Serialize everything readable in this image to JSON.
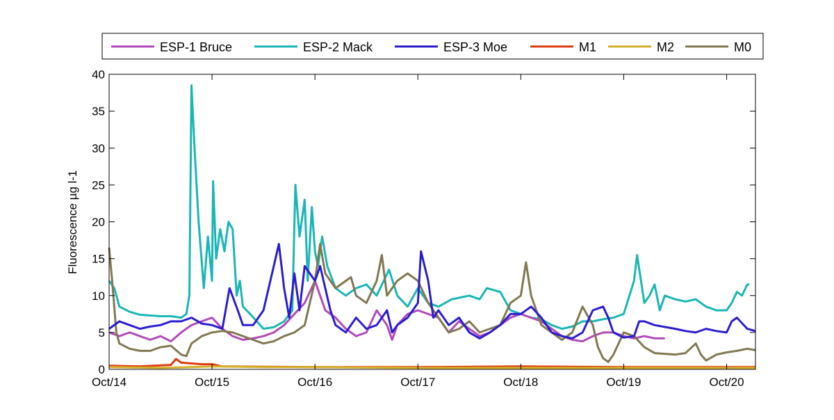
{
  "chart_data": {
    "type": "line",
    "title": "",
    "xlabel": "",
    "ylabel": "Fluorescence µg l-1",
    "xlim": [
      14,
      20.28
    ],
    "ylim": [
      0,
      40
    ],
    "xticks": [
      14,
      15,
      16,
      17,
      18,
      19,
      20
    ],
    "xtick_labels": [
      "Oct/14",
      "Oct/15",
      "Oct/16",
      "Oct/17",
      "Oct/18",
      "Oct/19",
      "Oct/20"
    ],
    "yticks": [
      0,
      5,
      10,
      15,
      20,
      25,
      30,
      35,
      40
    ],
    "ytick_labels": [
      "0",
      "5",
      "10",
      "15",
      "20",
      "25",
      "30",
      "35",
      "40"
    ],
    "grid": false,
    "legend_position": "top-outside",
    "series": [
      {
        "name": "ESP-1 Bruce",
        "color": "#b04ab8",
        "x": [
          14.0,
          14.1,
          14.2,
          14.3,
          14.4,
          14.5,
          14.6,
          14.7,
          14.8,
          14.9,
          15.0,
          15.1,
          15.2,
          15.3,
          15.4,
          15.5,
          15.6,
          15.7,
          15.8,
          15.9,
          16.0,
          16.05,
          16.1,
          16.2,
          16.3,
          16.4,
          16.5,
          16.6,
          16.7,
          16.75,
          16.8,
          16.9,
          17.0,
          17.1,
          17.2,
          17.3,
          17.4,
          17.5,
          17.6,
          17.7,
          17.8,
          17.9,
          18.0,
          18.1,
          18.2,
          18.3,
          18.4,
          18.5,
          18.6,
          18.7,
          18.8,
          18.9,
          19.0,
          19.1,
          19.2,
          19.3,
          19.4
        ],
        "y": [
          5,
          4.5,
          5,
          4.5,
          4,
          4.5,
          3.8,
          5,
          6,
          6.5,
          7,
          5.5,
          4.5,
          4,
          4.2,
          4.5,
          5,
          6,
          7.5,
          9,
          12,
          10,
          8,
          7,
          5.5,
          4.5,
          5,
          8,
          6,
          4,
          6,
          7.5,
          8,
          7.5,
          7,
          5,
          6.5,
          5.5,
          4.5,
          5,
          6,
          7,
          7.5,
          7,
          6.5,
          5.5,
          4.5,
          4,
          3.8,
          4.5,
          5,
          5,
          4.5,
          4.2,
          4.5,
          4.2,
          4.2
        ]
      },
      {
        "name": "ESP-2 Mack",
        "color": "#1ab5b5",
        "x": [
          14.0,
          14.05,
          14.1,
          14.2,
          14.3,
          14.5,
          14.6,
          14.7,
          14.75,
          14.78,
          14.8,
          14.83,
          14.87,
          14.92,
          14.96,
          15.0,
          15.01,
          15.04,
          15.08,
          15.12,
          15.16,
          15.2,
          15.24,
          15.27,
          15.3,
          15.37,
          15.5,
          15.6,
          15.7,
          15.78,
          15.81,
          15.85,
          15.9,
          15.93,
          15.97,
          16.0,
          16.03,
          16.07,
          16.12,
          16.2,
          16.3,
          16.4,
          16.5,
          16.6,
          16.72,
          16.8,
          16.9,
          17.0,
          17.1,
          17.2,
          17.33,
          17.5,
          17.6,
          17.67,
          17.8,
          17.9,
          18.0,
          18.1,
          18.2,
          18.3,
          18.4,
          18.5,
          18.6,
          18.7,
          18.8,
          18.9,
          19.0,
          19.1,
          19.13,
          19.2,
          19.25,
          19.3,
          19.35,
          19.4,
          19.5,
          19.6,
          19.7,
          19.8,
          19.9,
          20.0,
          20.05,
          20.1,
          20.15,
          20.2,
          20.22
        ],
        "y": [
          12,
          11,
          8.5,
          7.8,
          7.4,
          7.2,
          7.2,
          7.0,
          7.5,
          10,
          38.5,
          30,
          20,
          11,
          18,
          12,
          25.5,
          15,
          19,
          16,
          20,
          19,
          10,
          12,
          8.5,
          7.5,
          5.5,
          5.7,
          6.5,
          8,
          25,
          18,
          23,
          12,
          22,
          16,
          14,
          18,
          14,
          11,
          10,
          11,
          11.5,
          10,
          13.5,
          10,
          8.5,
          11,
          9,
          8.5,
          9.5,
          10,
          9.5,
          11,
          10.5,
          8,
          7.5,
          7,
          6.8,
          6,
          5.5,
          5.8,
          6.5,
          6.5,
          6.8,
          7,
          7.5,
          12,
          15.5,
          9,
          10,
          11.5,
          8,
          10,
          9.5,
          9.2,
          9.5,
          8.5,
          8,
          8,
          9,
          10.5,
          10,
          11.5,
          11.5
        ]
      },
      {
        "name": "ESP-3 Moe",
        "color": "#2b1ccf",
        "x": [
          14.0,
          14.1,
          14.2,
          14.3,
          14.4,
          14.5,
          14.6,
          14.7,
          14.8,
          14.9,
          15.0,
          15.1,
          15.17,
          15.25,
          15.3,
          15.4,
          15.5,
          15.6,
          15.65,
          15.7,
          15.75,
          15.8,
          15.85,
          15.9,
          16.0,
          16.05,
          16.1,
          16.15,
          16.2,
          16.3,
          16.4,
          16.5,
          16.6,
          16.7,
          16.75,
          16.8,
          16.9,
          17.0,
          17.03,
          17.1,
          17.15,
          17.2,
          17.3,
          17.4,
          17.5,
          17.6,
          17.7,
          17.8,
          17.9,
          18.0,
          18.1,
          18.2,
          18.3,
          18.4,
          18.5,
          18.6,
          18.7,
          18.8,
          18.85,
          18.9,
          19.0,
          19.1,
          19.15,
          19.2,
          19.3,
          19.5,
          19.6,
          19.7,
          19.8,
          19.9,
          20.0,
          20.05,
          20.1,
          20.2,
          20.28
        ],
        "y": [
          5.5,
          6.5,
          6,
          5.5,
          5.8,
          6,
          6.5,
          6.5,
          7,
          6.2,
          6,
          5.5,
          11,
          8,
          6,
          6,
          8,
          14,
          17,
          11,
          7,
          13,
          8,
          14,
          12,
          14,
          11,
          8,
          6,
          5,
          7,
          5.5,
          6,
          8,
          5,
          6,
          7,
          9,
          16,
          12,
          7,
          8,
          6,
          7,
          5,
          4.2,
          5,
          6,
          7.5,
          7.5,
          8.5,
          7,
          5,
          4.5,
          4.2,
          5,
          8,
          8.5,
          7,
          5,
          4.3,
          4.5,
          6.5,
          6.5,
          6,
          5.5,
          5.2,
          5,
          5.5,
          5.2,
          5,
          6.5,
          7,
          5.5,
          5.2
        ]
      },
      {
        "name": "M1",
        "color": "#e03a10",
        "x": [
          14.0,
          14.3,
          14.6,
          14.65,
          14.7,
          14.9,
          15.0,
          15.1,
          16.0,
          17.0,
          18.0,
          19.0,
          20.28
        ],
        "y": [
          0.5,
          0.4,
          0.6,
          1.4,
          0.9,
          0.7,
          0.7,
          0.4,
          0.3,
          0.3,
          0.4,
          0.3,
          0.3
        ]
      },
      {
        "name": "M2",
        "color": "#d4b02a",
        "x": [
          14.0,
          14.5,
          14.8,
          15.0,
          15.5,
          16.0,
          17.0,
          18.0,
          19.0,
          20.28
        ],
        "y": [
          0.3,
          0.2,
          0.3,
          0.4,
          0.3,
          0.3,
          0.2,
          0.2,
          0.2,
          0.2
        ]
      },
      {
        "name": "M0",
        "color": "#807850",
        "x": [
          14.0,
          14.03,
          14.07,
          14.1,
          14.2,
          14.3,
          14.4,
          14.5,
          14.6,
          14.7,
          14.75,
          14.8,
          14.9,
          15.0,
          15.1,
          15.2,
          15.3,
          15.4,
          15.5,
          15.6,
          15.7,
          15.8,
          15.9,
          15.95,
          16.0,
          16.05,
          16.1,
          16.2,
          16.3,
          16.35,
          16.4,
          16.5,
          16.6,
          16.65,
          16.7,
          16.8,
          16.9,
          17.0,
          17.1,
          17.2,
          17.3,
          17.4,
          17.5,
          17.6,
          17.7,
          17.8,
          17.9,
          18.0,
          18.05,
          18.1,
          18.2,
          18.3,
          18.4,
          18.5,
          18.6,
          18.7,
          18.75,
          18.8,
          18.85,
          18.9,
          19.0,
          19.1,
          19.2,
          19.3,
          19.5,
          19.6,
          19.7,
          19.75,
          19.8,
          19.9,
          20.0,
          20.1,
          20.2,
          20.28
        ],
        "y": [
          16.5,
          12,
          5,
          3.5,
          2.8,
          2.5,
          2.5,
          3,
          3.2,
          2,
          1.8,
          3.5,
          4.5,
          5,
          5.2,
          5,
          4.5,
          4,
          3.5,
          3.8,
          4.5,
          5,
          6,
          9,
          12,
          17,
          13,
          11,
          12,
          12.5,
          10,
          9,
          12,
          15.5,
          10,
          12,
          13,
          12,
          9,
          7,
          5,
          5.5,
          6.5,
          5,
          5.5,
          6,
          9,
          10,
          14.5,
          10,
          6,
          5,
          4,
          5,
          8.5,
          6,
          3,
          1.5,
          1,
          2,
          5,
          4.5,
          3,
          2.2,
          2,
          2.2,
          3.5,
          2,
          1.2,
          2,
          2.3,
          2.5,
          2.8,
          2.6
        ]
      }
    ]
  }
}
